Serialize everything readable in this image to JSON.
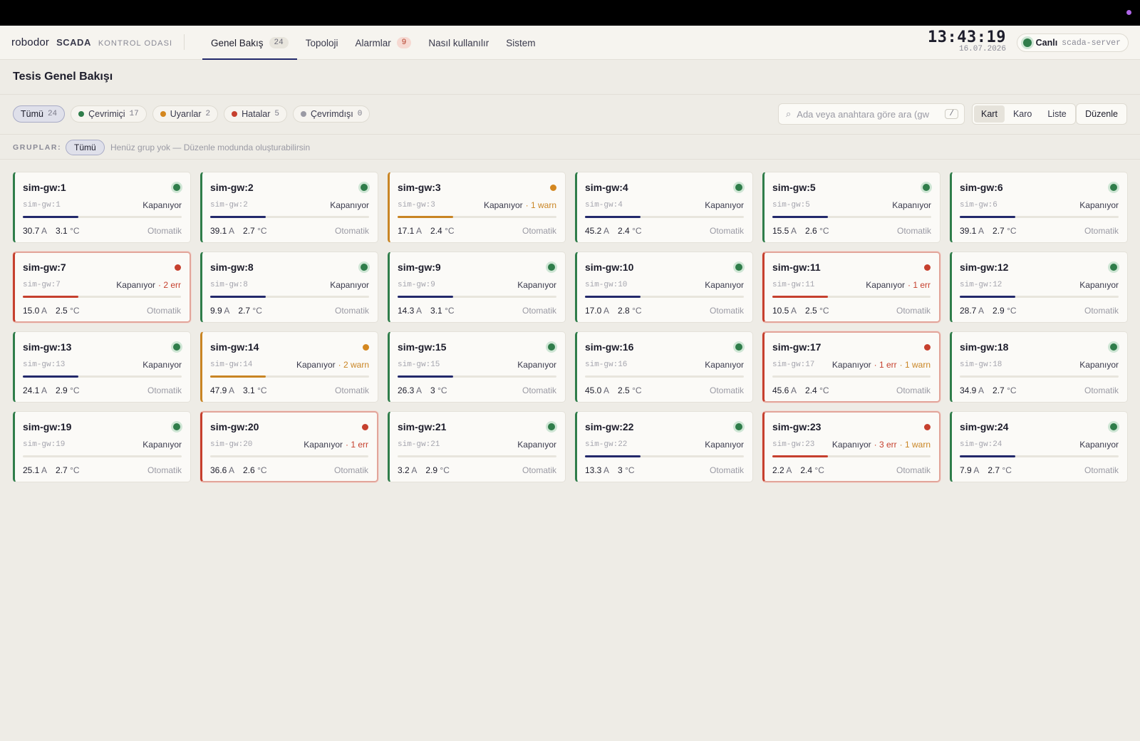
{
  "nav": {
    "logo": "robodor",
    "scada": "SCADA",
    "room": "KONTROL ODASI",
    "tabs": [
      {
        "label": "Genel Bakış",
        "count": "24",
        "active": true
      },
      {
        "label": "Topoloji",
        "count": null
      },
      {
        "label": "Alarmlar",
        "count": "9",
        "alert": true
      },
      {
        "label": "Nasıl kullanılır",
        "count": null
      },
      {
        "label": "Sistem",
        "count": null
      }
    ],
    "time": "13:43:19",
    "date": "16.07.2026",
    "live_label": "Canlı",
    "server": "scada-server"
  },
  "page_title": "Tesis Genel Bakışı",
  "filters": [
    {
      "label": "Tümü",
      "count": "24",
      "active": true,
      "color": null
    },
    {
      "label": "Çevrimiçi",
      "count": "17",
      "color": "#2f7d4a"
    },
    {
      "label": "Uyarılar",
      "count": "2",
      "color": "#d4871f"
    },
    {
      "label": "Hatalar",
      "count": "5",
      "color": "#c6402e"
    },
    {
      "label": "Çevrimdışı",
      "count": "0",
      "color": "#9a9aa4"
    }
  ],
  "search": {
    "placeholder": "Ada veya anahtara göre ara (gw",
    "shortcut": "/"
  },
  "views": [
    {
      "label": "Kart",
      "active": true
    },
    {
      "label": "Karo"
    },
    {
      "label": "Liste"
    }
  ],
  "edit_label": "Düzenle",
  "groups": {
    "label": "GRUPLAR:",
    "chip": "Tümü",
    "empty": "Henüz grup yok — Düzenle modunda oluşturabilirsin"
  },
  "card_text": {
    "state": "Kapanıyor",
    "mode": "Otomatik",
    "amp_unit": "A",
    "temp_unit": "°C"
  },
  "colors": {
    "ok": "#2f7d4a",
    "warn": "#d4871f",
    "error": "#c6402e",
    "accent": "#23296b"
  },
  "gateways": [
    {
      "name": "sim-gw:1",
      "id": "sim-gw:1",
      "status": "ok",
      "current": "30.7",
      "temp": "3.1",
      "flags": [],
      "progress": 0.35
    },
    {
      "name": "sim-gw:2",
      "id": "sim-gw:2",
      "status": "ok",
      "current": "39.1",
      "temp": "2.7",
      "flags": [],
      "progress": 0.35
    },
    {
      "name": "sim-gw:3",
      "id": "sim-gw:3",
      "status": "warn",
      "current": "17.1",
      "temp": "2.4",
      "flags": [
        {
          "type": "warn",
          "text": "· 1 warn"
        }
      ],
      "progress": 0.35
    },
    {
      "name": "sim-gw:4",
      "id": "sim-gw:4",
      "status": "ok",
      "current": "45.2",
      "temp": "2.4",
      "flags": [],
      "progress": 0.35
    },
    {
      "name": "sim-gw:5",
      "id": "sim-gw:5",
      "status": "ok",
      "current": "15.5",
      "temp": "2.6",
      "flags": [],
      "progress": 0.35
    },
    {
      "name": "sim-gw:6",
      "id": "sim-gw:6",
      "status": "ok",
      "current": "39.1",
      "temp": "2.7",
      "flags": [],
      "progress": 0.35
    },
    {
      "name": "sim-gw:7",
      "id": "sim-gw:7",
      "status": "error",
      "current": "15.0",
      "temp": "2.5",
      "flags": [
        {
          "type": "err",
          "text": "· 2 err"
        }
      ],
      "progress": 0.35
    },
    {
      "name": "sim-gw:8",
      "id": "sim-gw:8",
      "status": "ok",
      "current": "9.9",
      "temp": "2.7",
      "flags": [],
      "progress": 0.35
    },
    {
      "name": "sim-gw:9",
      "id": "sim-gw:9",
      "status": "ok",
      "current": "14.3",
      "temp": "3.1",
      "flags": [],
      "progress": 0.35
    },
    {
      "name": "sim-gw:10",
      "id": "sim-gw:10",
      "status": "ok",
      "current": "17.0",
      "temp": "2.8",
      "flags": [],
      "progress": 0.35
    },
    {
      "name": "sim-gw:11",
      "id": "sim-gw:11",
      "status": "error",
      "current": "10.5",
      "temp": "2.5",
      "flags": [
        {
          "type": "err",
          "text": "· 1 err"
        }
      ],
      "progress": 0.35
    },
    {
      "name": "sim-gw:12",
      "id": "sim-gw:12",
      "status": "ok",
      "current": "28.7",
      "temp": "2.9",
      "flags": [],
      "progress": 0.35
    },
    {
      "name": "sim-gw:13",
      "id": "sim-gw:13",
      "status": "ok",
      "current": "24.1",
      "temp": "2.9",
      "flags": [],
      "progress": 0.35
    },
    {
      "name": "sim-gw:14",
      "id": "sim-gw:14",
      "status": "warn",
      "current": "47.9",
      "temp": "3.1",
      "flags": [
        {
          "type": "warn",
          "text": "· 2 warn"
        }
      ],
      "progress": 0.35
    },
    {
      "name": "sim-gw:15",
      "id": "sim-gw:15",
      "status": "ok",
      "current": "26.3",
      "temp": "3",
      "flags": [],
      "progress": 0.35
    },
    {
      "name": "sim-gw:16",
      "id": "sim-gw:16",
      "status": "ok",
      "current": "45.0",
      "temp": "2.5",
      "flags": [],
      "progress": 0
    },
    {
      "name": "sim-gw:17",
      "id": "sim-gw:17",
      "status": "error",
      "current": "45.6",
      "temp": "2.4",
      "flags": [
        {
          "type": "err",
          "text": "· 1 err"
        },
        {
          "type": "warn",
          "text": "· 1 warn"
        }
      ],
      "progress": 0
    },
    {
      "name": "sim-gw:18",
      "id": "sim-gw:18",
      "status": "ok",
      "current": "34.9",
      "temp": "2.7",
      "flags": [],
      "progress": 0
    },
    {
      "name": "sim-gw:19",
      "id": "sim-gw:19",
      "status": "ok",
      "current": "25.1",
      "temp": "2.7",
      "flags": [],
      "progress": 0
    },
    {
      "name": "sim-gw:20",
      "id": "sim-gw:20",
      "status": "error",
      "current": "36.6",
      "temp": "2.6",
      "flags": [
        {
          "type": "err",
          "text": "· 1 err"
        }
      ],
      "progress": 0
    },
    {
      "name": "sim-gw:21",
      "id": "sim-gw:21",
      "status": "ok",
      "current": "3.2",
      "temp": "2.9",
      "flags": [],
      "progress": 0
    },
    {
      "name": "sim-gw:22",
      "id": "sim-gw:22",
      "status": "ok",
      "current": "13.3",
      "temp": "3",
      "flags": [],
      "progress": 0.35
    },
    {
      "name": "sim-gw:23",
      "id": "sim-gw:23",
      "status": "error",
      "current": "2.2",
      "temp": "2.4",
      "flags": [
        {
          "type": "err",
          "text": "· 3 err"
        },
        {
          "type": "warn",
          "text": "· 1 warn"
        }
      ],
      "progress": 0.35
    },
    {
      "name": "sim-gw:24",
      "id": "sim-gw:24",
      "status": "ok",
      "current": "7.9",
      "temp": "2.7",
      "flags": [],
      "progress": 0.35
    }
  ]
}
